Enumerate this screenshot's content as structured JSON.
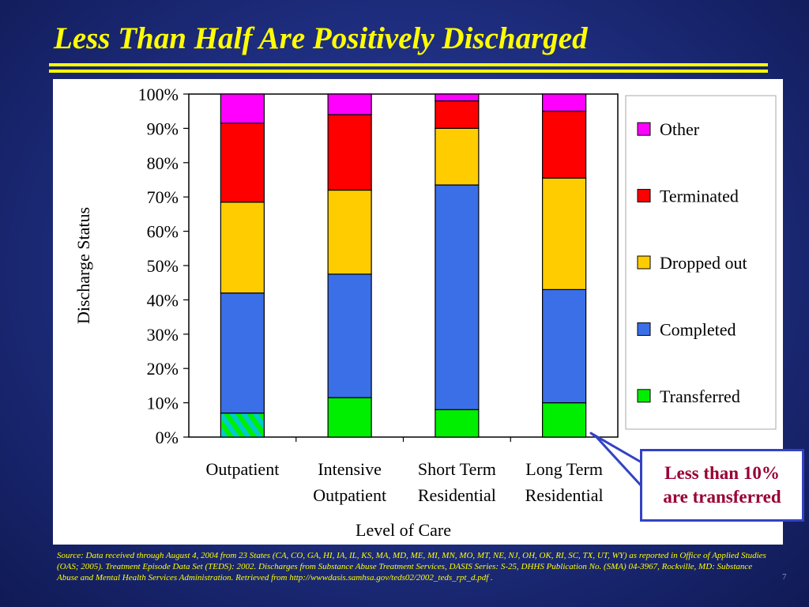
{
  "slide": {
    "title": "Less Than Half Are Positively Discharged",
    "source": "Source: Data received through August 4, 2004 from 23 States (CA, CO, GA, HI, IA, IL, KS, MA, MD, ME, MI, MN, MO, MT, NE, NJ, OH, OK, RI, SC, TX, UT, WY)  as reported in Office of Applied Studies (OAS;  2005). Treatment Episode Data Set (TEDS): 2002. Discharges from Substance Abuse Treatment Services, DASIS Series: S-25, DHHS Publication No. (SMA) 04-3967, Rockville, MD: Substance Abuse and Mental Health Services Administration. Retrieved from http://wwwdasis.samhsa.gov/teds02/2002_teds_rpt_d.pdf .",
    "page_number": "7",
    "callout": "Less than 10%\nare transferred"
  },
  "chart_data": {
    "type": "bar",
    "stacked": true,
    "percent": true,
    "categories": [
      [
        "Outpatient"
      ],
      [
        "Intensive",
        "Outpatient"
      ],
      [
        "Short Term",
        "Residential"
      ],
      [
        "Long Term",
        "Residential"
      ]
    ],
    "xlabel": "Level of Care",
    "ylabel": "Discharge Status",
    "ylim": [
      0,
      100
    ],
    "yticks": [
      "0%",
      "10%",
      "20%",
      "30%",
      "40%",
      "50%",
      "60%",
      "70%",
      "80%",
      "90%",
      "100%"
    ],
    "legend_position": "right",
    "series": [
      {
        "name": "Transferred",
        "color": "#00ee00",
        "values": [
          7,
          11.5,
          8,
          10
        ]
      },
      {
        "name": "Completed",
        "color": "#3a6fe8",
        "values": [
          35,
          36,
          65.5,
          33
        ]
      },
      {
        "name": "Dropped out",
        "color": "#ffcc00",
        "values": [
          26.5,
          24.5,
          16.5,
          32.5
        ]
      },
      {
        "name": "Terminated",
        "color": "#ff0000",
        "values": [
          23,
          22,
          8,
          19.5
        ]
      },
      {
        "name": "Other",
        "color": "#ff00ff",
        "values": [
          8.5,
          6,
          2,
          5
        ]
      }
    ],
    "hatched_segment": {
      "series": "Transferred",
      "category": "Outpatient",
      "hatch_color": "#00cccc"
    }
  }
}
